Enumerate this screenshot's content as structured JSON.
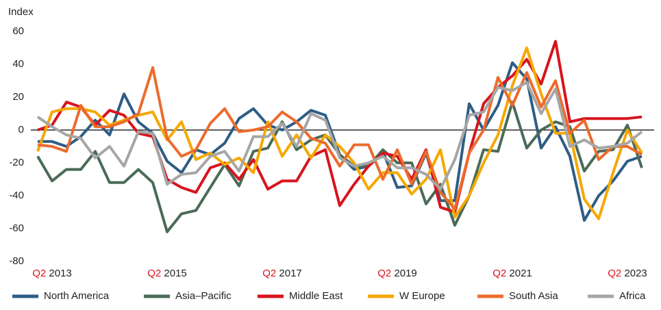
{
  "chart_data": {
    "type": "line",
    "y_label": "Index",
    "categories": [
      null,
      "Q2 2013",
      null,
      null,
      null,
      null,
      null,
      null,
      null,
      "Q2 2015",
      null,
      null,
      null,
      null,
      null,
      null,
      null,
      "Q2 2017",
      null,
      null,
      null,
      null,
      null,
      null,
      null,
      "Q2 2019",
      null,
      null,
      null,
      null,
      null,
      null,
      null,
      "Q2 2021",
      null,
      null,
      null,
      null,
      null,
      null,
      null,
      "Q2 2023",
      null
    ],
    "ylim": [
      -80,
      60
    ],
    "yticks": [
      -80,
      -60,
      -40,
      -20,
      0,
      20,
      40,
      60
    ],
    "grid": false,
    "legend": "bottom",
    "series": [
      {
        "name": "North America",
        "color": "#2e5d86",
        "values": [
          -7,
          -7,
          -10,
          -4,
          6,
          -3,
          22,
          5,
          -2,
          -19,
          -26,
          -12,
          -15,
          -8,
          7,
          13,
          3,
          0,
          5,
          12,
          9,
          -15,
          -24,
          -22,
          -13,
          -35,
          -34,
          -14,
          -43,
          -43,
          16,
          0,
          15,
          41,
          31,
          -11,
          2,
          -16,
          -55,
          -40,
          -31,
          -19,
          -16
        ]
      },
      {
        "name": "Asia–Pacific",
        "color": "#4a6b57",
        "values": [
          -16,
          -31,
          -24,
          -24,
          -13,
          -32,
          -32,
          -24,
          -32,
          -62,
          -51,
          -49,
          -35,
          -21,
          -34,
          -13,
          -11,
          5,
          -12,
          -6,
          -3,
          -15,
          -22,
          -22,
          -12,
          -20,
          -20,
          -45,
          -33,
          -58,
          -40,
          -12,
          -13,
          17,
          -11,
          0,
          5,
          2,
          -25,
          -13,
          -12,
          3,
          -23
        ]
      },
      {
        "name": "Middle East",
        "color": "#d7141e",
        "values": [
          0,
          3,
          17,
          14,
          3,
          12,
          9,
          -2,
          -4,
          -30,
          -35,
          -38,
          -23,
          -20,
          -30,
          -18,
          -36,
          -31,
          -31,
          -16,
          -12,
          -46,
          -33,
          -22,
          -14,
          -16,
          -30,
          -12,
          -47,
          -50,
          -14,
          16,
          26,
          33,
          43,
          28,
          54,
          5,
          7,
          7,
          7,
          7,
          8
        ]
      },
      {
        "name": "W Europe",
        "color": "#f5a800",
        "values": [
          -13,
          11,
          13,
          13,
          11,
          3,
          6,
          9,
          11,
          -6,
          5,
          -18,
          -14,
          -21,
          -17,
          -26,
          5,
          -16,
          -3,
          -17,
          -3,
          -10,
          -20,
          -36,
          -26,
          -26,
          -39,
          -30,
          -12,
          -53,
          -40,
          -20,
          -3,
          27,
          50,
          22,
          -2,
          -2,
          -42,
          -54,
          -26,
          0,
          -14
        ]
      },
      {
        "name": "South Asia",
        "color": "#ec6b2d",
        "values": [
          -9,
          -10,
          -13,
          15,
          2,
          2,
          5,
          10,
          38,
          -5,
          -16,
          -12,
          4,
          13,
          -1,
          0,
          2,
          11,
          5,
          -5,
          -8,
          -22,
          -9,
          -9,
          -30,
          -12,
          -33,
          -13,
          -38,
          -48,
          -14,
          0,
          32,
          15,
          35,
          14,
          30,
          -2,
          6,
          -18,
          -10,
          -10,
          -15
        ]
      },
      {
        "name": "Africa",
        "color": "#a6a6a6",
        "values": [
          8,
          2,
          -3,
          -5,
          -17,
          -10,
          -22,
          -1,
          -2,
          -33,
          -27,
          -26,
          -16,
          -13,
          -25,
          -4,
          -4,
          4,
          -10,
          10,
          6,
          -17,
          -22,
          -20,
          -16,
          -23,
          -23,
          -27,
          -36,
          -18,
          9,
          11,
          26,
          24,
          29,
          10,
          25,
          -10,
          -6,
          -11,
          -10,
          -8,
          -1
        ]
      }
    ]
  }
}
